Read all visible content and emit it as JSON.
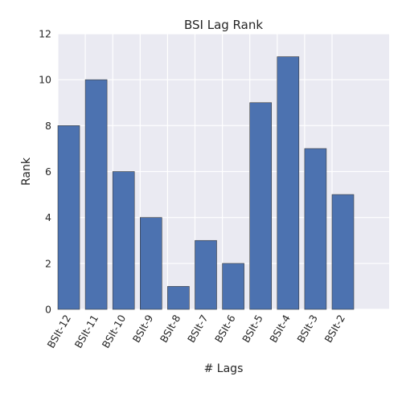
{
  "chart_data": {
    "type": "bar",
    "title": "BSI Lag Rank",
    "xlabel": "# Lags",
    "ylabel": "Rank",
    "categories": [
      "BSIt-12",
      "BSIt-11",
      "BSIt-10",
      "BSIt-9",
      "BSIt-8",
      "BSIt-7",
      "BSIt-6",
      "BSIt-5",
      "BSIt-4",
      "BSIt-3",
      "BSIt-2"
    ],
    "values": [
      8,
      10,
      6,
      4,
      1,
      3,
      2,
      9,
      11,
      7,
      5
    ],
    "ylim": [
      0,
      12
    ],
    "yticks": [
      0,
      2,
      4,
      6,
      8,
      10,
      12
    ],
    "grid": true,
    "legend": "none",
    "bar_color": "#4C72B0",
    "background_color": "#EAEAF2",
    "grid_color": "#FFFFFF"
  }
}
